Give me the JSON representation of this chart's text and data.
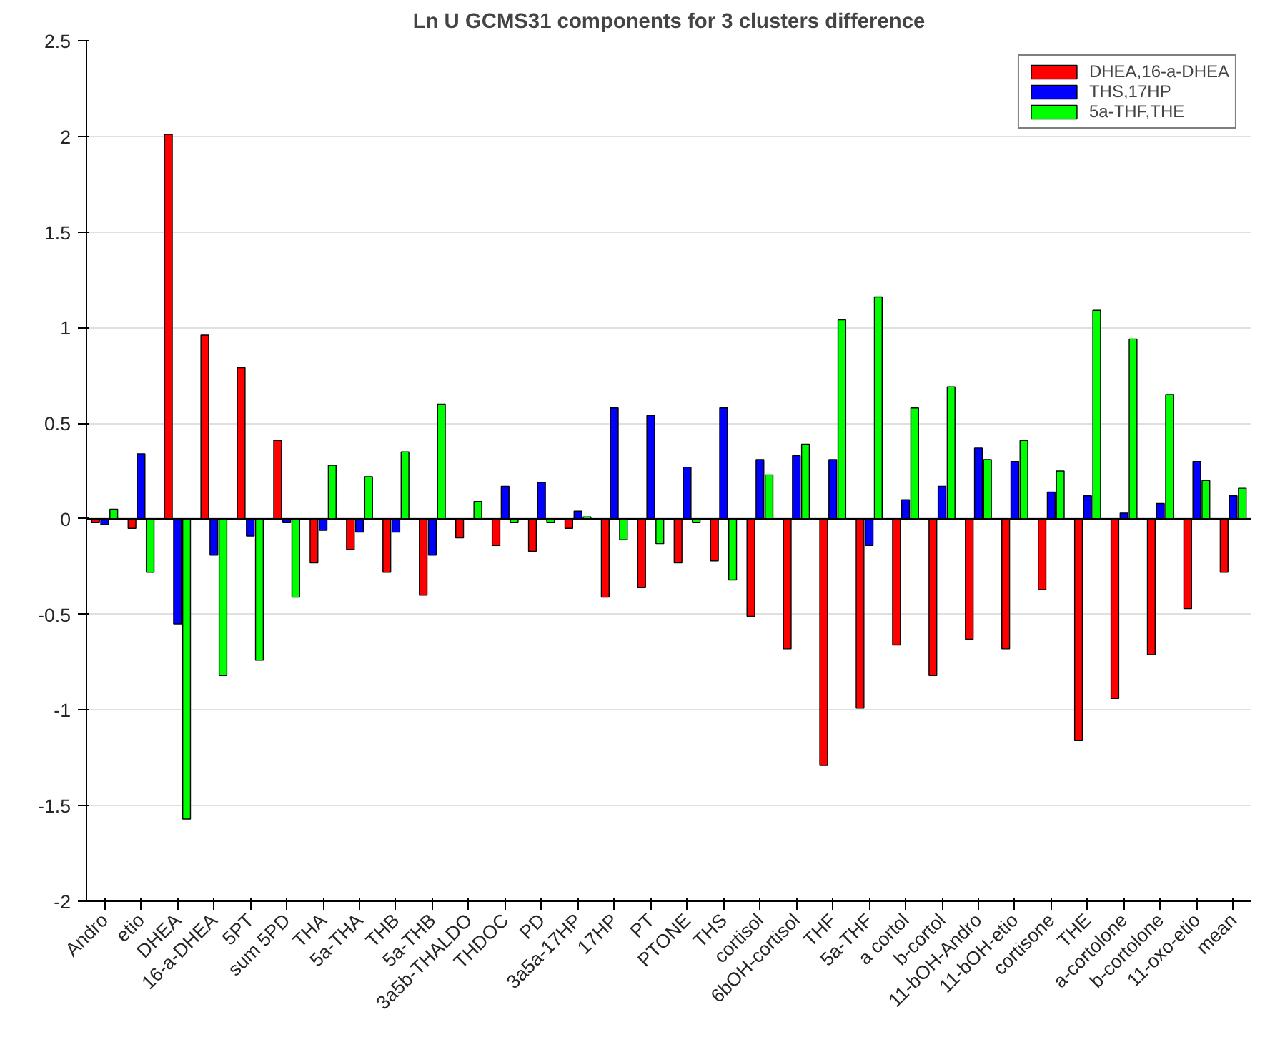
{
  "chart_data": {
    "type": "bar",
    "title": "Ln U GCMS31 components for 3 clusters difference",
    "categories": [
      "Andro",
      "etio",
      "DHEA",
      "16-a-DHEA",
      "5PT",
      "sum 5PD",
      "THA",
      "5a-THA",
      "THB",
      "5a-THB",
      "3a5b-THALDO",
      "THDOC",
      "PD",
      "3a5a-17HP",
      "17HP",
      "PT",
      "PTONE",
      "THS",
      "cortisol",
      "6bOH-cortisol",
      "THF",
      "5a-THF",
      "a cortol",
      "b-cortol",
      "11-bOH-Andro",
      "11-bOH-etio",
      "cortisone",
      "THE",
      "a-cortolone",
      "b-cortolone",
      "11-oxo-etio",
      "mean"
    ],
    "series": [
      {
        "name": "DHEA,16-a-DHEA",
        "color": "#ff0000",
        "values": [
          -0.02,
          -0.05,
          2.01,
          0.96,
          0.79,
          0.41,
          -0.23,
          -0.16,
          -0.28,
          -0.4,
          -0.1,
          -0.14,
          -0.17,
          -0.05,
          -0.41,
          -0.36,
          -0.23,
          -0.22,
          -0.51,
          -0.68,
          -1.29,
          -0.99,
          -0.66,
          -0.82,
          -0.63,
          -0.68,
          -0.37,
          -1.16,
          -0.94,
          -0.71,
          -0.47,
          -0.28
        ]
      },
      {
        "name": "THS,17HP",
        "color": "#0000ff",
        "values": [
          -0.03,
          0.34,
          -0.55,
          -0.19,
          -0.09,
          -0.02,
          -0.06,
          -0.07,
          -0.07,
          -0.19,
          null,
          0.17,
          0.19,
          0.04,
          0.58,
          0.54,
          0.27,
          0.58,
          0.31,
          0.33,
          0.31,
          -0.14,
          0.1,
          0.17,
          0.37,
          0.3,
          0.14,
          0.12,
          0.03,
          0.08,
          0.3,
          0.12
        ]
      },
      {
        "name": "5a-THF,THE",
        "color": "#00ff00",
        "values": [
          0.05,
          -0.28,
          -1.57,
          -0.82,
          -0.74,
          -0.41,
          0.28,
          0.22,
          0.35,
          0.6,
          0.09,
          -0.02,
          -0.02,
          0.01,
          -0.11,
          -0.13,
          -0.02,
          -0.32,
          0.23,
          0.39,
          1.04,
          1.16,
          0.58,
          0.69,
          0.31,
          0.41,
          0.25,
          1.09,
          0.94,
          0.65,
          0.2,
          0.16
        ]
      }
    ],
    "ylim": [
      -2,
      2.5
    ],
    "yticks": [
      -2,
      -1.5,
      -1,
      -0.5,
      0,
      0.5,
      1,
      1.5,
      2,
      2.5
    ],
    "grid": "y",
    "legend": "top right"
  }
}
